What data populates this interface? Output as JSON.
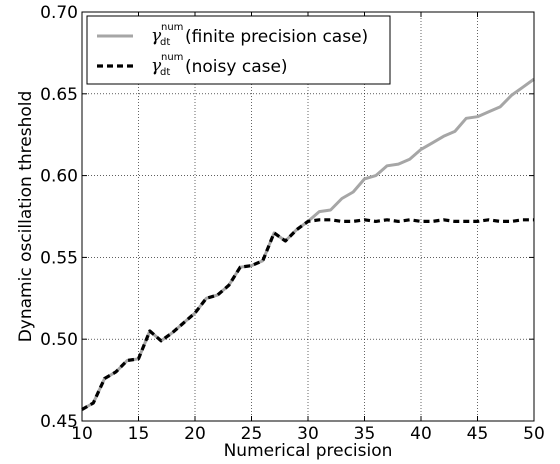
{
  "chart_data": {
    "type": "line",
    "xlabel": "Numerical precision",
    "ylabel": "Dynamic oscillation threshold",
    "xlim": [
      10,
      50
    ],
    "ylim": [
      0.45,
      0.7
    ],
    "xticks": [
      "10",
      "15",
      "20",
      "25",
      "30",
      "35",
      "40",
      "45",
      "50"
    ],
    "yticks": [
      "0.45",
      "0.50",
      "0.55",
      "0.60",
      "0.65",
      "0.70"
    ],
    "grid": true,
    "legend_position": "top-left",
    "series": [
      {
        "name": "(finite precision case)",
        "symbol": "γ",
        "subscript": "dt",
        "superscript": "num",
        "color": "#a6a6a6",
        "style": "solid",
        "x": [
          10,
          11,
          12,
          13,
          14,
          15,
          16,
          17,
          18,
          19,
          20,
          21,
          22,
          23,
          24,
          25,
          26,
          27,
          28,
          29,
          30,
          31,
          32,
          33,
          34,
          35,
          36,
          37,
          38,
          39,
          40,
          41,
          42,
          43,
          44,
          45,
          46,
          47,
          48,
          49,
          50
        ],
        "y": [
          0.457,
          0.461,
          0.476,
          0.48,
          0.487,
          0.488,
          0.505,
          0.499,
          0.504,
          0.51,
          0.516,
          0.525,
          0.527,
          0.533,
          0.544,
          0.545,
          0.548,
          0.565,
          0.56,
          0.567,
          0.572,
          0.578,
          0.579,
          0.586,
          0.59,
          0.598,
          0.6,
          0.606,
          0.607,
          0.61,
          0.616,
          0.62,
          0.624,
          0.627,
          0.635,
          0.636,
          0.639,
          0.642,
          0.649,
          0.654,
          0.659
        ]
      },
      {
        "name": "(noisy case)",
        "symbol": "γ",
        "subscript": "dt",
        "superscript": "num",
        "color": "#000000",
        "style": "dashed",
        "x": [
          10,
          11,
          12,
          13,
          14,
          15,
          16,
          17,
          18,
          19,
          20,
          21,
          22,
          23,
          24,
          25,
          26,
          27,
          28,
          29,
          30,
          31,
          32,
          33,
          34,
          35,
          36,
          37,
          38,
          39,
          40,
          41,
          42,
          43,
          44,
          45,
          46,
          47,
          48,
          49,
          50
        ],
        "y": [
          0.457,
          0.461,
          0.476,
          0.48,
          0.487,
          0.488,
          0.505,
          0.499,
          0.504,
          0.51,
          0.516,
          0.525,
          0.527,
          0.533,
          0.544,
          0.545,
          0.548,
          0.565,
          0.56,
          0.567,
          0.572,
          0.573,
          0.573,
          0.572,
          0.572,
          0.573,
          0.572,
          0.573,
          0.572,
          0.573,
          0.572,
          0.572,
          0.573,
          0.572,
          0.572,
          0.572,
          0.573,
          0.572,
          0.572,
          0.573,
          0.573
        ]
      }
    ]
  }
}
